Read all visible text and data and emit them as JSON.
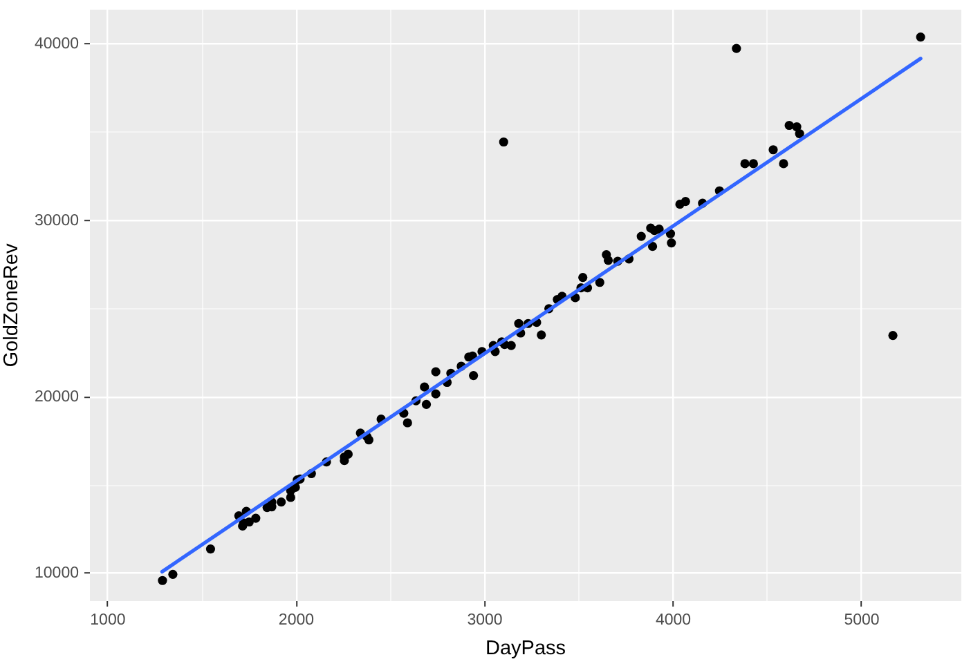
{
  "chart_data": {
    "type": "scatter",
    "xlabel": "DayPass",
    "ylabel": "GoldZoneRev",
    "series": [
      {
        "type": "scatter",
        "color": "#000000",
        "marker": "circle",
        "x": [
          1290,
          1345,
          1545,
          1695,
          1735,
          1715,
          1720,
          1750,
          1785,
          1845,
          1870,
          1870,
          1920,
          1970,
          1970,
          1995,
          2005,
          2020,
          2080,
          2160,
          2255,
          2255,
          2275,
          2340,
          2375,
          2385,
          2450,
          2570,
          2590,
          2635,
          2680,
          2690,
          2740,
          2740,
          2800,
          2820,
          2875,
          2915,
          2935,
          2940,
          2985,
          3045,
          3055,
          3090,
          3105,
          3140,
          3180,
          3190,
          3230,
          3275,
          3300,
          3340,
          3385,
          3410,
          3480,
          3520,
          3510,
          3545,
          3610,
          3645,
          3655,
          3705,
          3765,
          3830,
          3880,
          3900,
          3925,
          3890,
          3985,
          3990,
          4035,
          4065,
          4155,
          4245,
          4380,
          4425,
          4530,
          4585,
          4615,
          4655,
          4670,
          4335,
          3100,
          5165,
          5312
        ],
        "values": [
          9600,
          9950,
          11390,
          13270,
          13520,
          12690,
          12870,
          12920,
          13130,
          13740,
          14050,
          13780,
          14050,
          14310,
          14700,
          14880,
          15300,
          15350,
          15660,
          16320,
          16400,
          16600,
          16760,
          17960,
          17750,
          17570,
          18750,
          19080,
          18540,
          19790,
          20570,
          19580,
          20180,
          21430,
          20830,
          21350,
          21750,
          22270,
          22320,
          21220,
          22580,
          22920,
          22580,
          23130,
          22980,
          22920,
          24170,
          23630,
          24170,
          24230,
          23520,
          25010,
          25530,
          25710,
          25630,
          26780,
          26190,
          26190,
          26500,
          28070,
          27750,
          27700,
          27830,
          29110,
          29580,
          29440,
          29520,
          28540,
          29260,
          28740,
          30930,
          31090,
          30990,
          31690,
          33230,
          33230,
          34020,
          33230,
          35400,
          35320,
          34930,
          39760,
          34460,
          23490,
          40410
        ]
      },
      {
        "type": "line",
        "color": "#3366ff",
        "marker": "none",
        "line_style": "solid",
        "x": [
          1288,
          5312
        ],
        "values": [
          10100,
          39190
        ]
      }
    ],
    "xlim": [
      905,
      5528
    ],
    "ylim": [
      8435,
      41960
    ],
    "xticks": [
      1000,
      {
        "value": 1500,
        "label": null
      },
      2000,
      {
        "value": 2500,
        "label": null
      },
      3000,
      {
        "value": 3500,
        "label": null
      },
      4000,
      {
        "value": 4500,
        "label": null
      },
      5000
    ],
    "yticks": [
      10000,
      {
        "value": 15000,
        "label": null
      },
      20000,
      {
        "value": 25000,
        "label": null
      },
      30000,
      {
        "value": 35000,
        "label": null
      },
      40000
    ],
    "grid": true
  }
}
